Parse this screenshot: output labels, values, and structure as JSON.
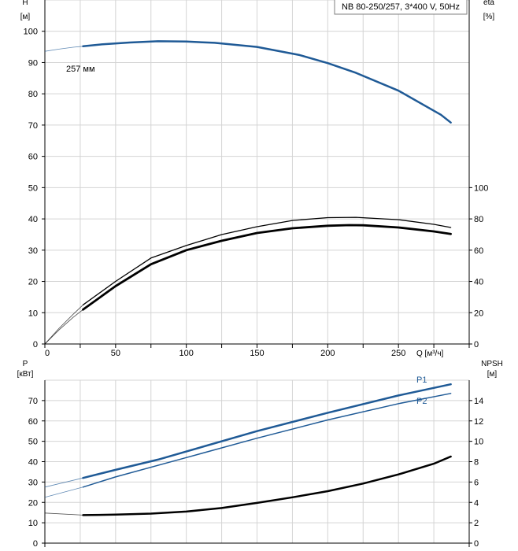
{
  "title": "NB 80-250/257, 3*400 V, 50Hz",
  "chart_data": [
    {
      "type": "line",
      "panel": "upper",
      "xlabel": "Q [м³/ч]",
      "xlim": [
        0,
        300
      ],
      "x_ticks": [
        0,
        50,
        100,
        150,
        200,
        250
      ],
      "ylabel_left": "H\n[м]",
      "ylim_left": [
        0,
        110
      ],
      "y_ticks_left": [
        0,
        10,
        20,
        30,
        40,
        50,
        60,
        70,
        80,
        90,
        100
      ],
      "ylabel_right": "eta\n[%]",
      "ylim_right": [
        0,
        220
      ],
      "y_ticks_right": [
        0,
        20,
        40,
        60,
        80,
        100
      ],
      "grid": true,
      "annotations": [
        {
          "text": "257 мм"
        }
      ],
      "series": [
        {
          "id": "H",
          "axis": "left",
          "color": "#1f5a96",
          "x": [
            27,
            40,
            60,
            80,
            100,
            120,
            150,
            180,
            200,
            220,
            250,
            280,
            287
          ],
          "y": [
            95.2,
            95.8,
            96.4,
            96.8,
            96.7,
            96.3,
            95.0,
            92.4,
            89.8,
            86.7,
            81.0,
            73.3,
            70.8
          ],
          "ext_x": [
            0,
            10,
            20,
            27
          ],
          "ext_y": [
            93.6,
            94.3,
            94.9,
            95.2
          ]
        },
        {
          "id": "eta",
          "axis": "right",
          "color": "#000000",
          "x": [
            27,
            50,
            75,
            100,
            125,
            150,
            175,
            200,
            215,
            225,
            250,
            275,
            287
          ],
          "y": [
            22,
            37,
            51,
            60,
            66,
            71,
            74,
            75.6,
            76,
            75.9,
            74.5,
            72,
            70.4
          ],
          "ext_x": [
            0,
            10,
            20,
            27
          ],
          "ext_y": [
            0,
            9,
            17,
            22
          ]
        },
        {
          "id": "eta_outer",
          "axis": "right",
          "color": "#000000",
          "x": [
            27,
            50,
            75,
            100,
            125,
            150,
            175,
            200,
            220,
            250,
            275,
            287
          ],
          "y": [
            25,
            40,
            55,
            63,
            70,
            75,
            79,
            80.8,
            81,
            79.5,
            76.5,
            74.5
          ],
          "ext_x": [
            0,
            10,
            20,
            27
          ],
          "ext_y": [
            0,
            10,
            19,
            25
          ]
        }
      ]
    },
    {
      "type": "line",
      "panel": "lower",
      "xlim": [
        0,
        300
      ],
      "ylabel_left": "P\n[кВт]",
      "ylim_left": [
        0,
        80
      ],
      "y_ticks_left": [
        0,
        10,
        20,
        30,
        40,
        50,
        60,
        70
      ],
      "ylabel_right": "NPSH\n[м]",
      "ylim_right": [
        0,
        16
      ],
      "y_ticks_right": [
        0,
        2,
        4,
        6,
        8,
        10,
        12,
        14
      ],
      "grid": true,
      "series": [
        {
          "id": "P1",
          "name": "P1",
          "axis": "left",
          "color": "#1f5a96",
          "x": [
            27,
            50,
            80,
            100,
            150,
            200,
            250,
            287
          ],
          "y": [
            32,
            36,
            41,
            45,
            55,
            64,
            72.5,
            78
          ],
          "ext_x": [
            0,
            27
          ],
          "ext_y": [
            27.5,
            32
          ]
        },
        {
          "id": "P2",
          "name": "P2",
          "axis": "left",
          "color": "#1f5a96",
          "x": [
            27,
            50,
            100,
            150,
            200,
            250,
            287
          ],
          "y": [
            27.5,
            32.5,
            42,
            51.5,
            60.5,
            68.5,
            73.5
          ],
          "ext_x": [
            0,
            27
          ],
          "ext_y": [
            22.5,
            27.5
          ]
        },
        {
          "id": "NPSH",
          "axis": "right",
          "color": "#000000",
          "x": [
            27,
            50,
            75,
            100,
            125,
            150,
            175,
            200,
            225,
            250,
            275,
            287
          ],
          "y": [
            2.75,
            2.8,
            2.9,
            3.1,
            3.45,
            3.95,
            4.5,
            5.1,
            5.85,
            6.75,
            7.8,
            8.5
          ],
          "ext_x": [
            0,
            27
          ],
          "ext_y": [
            2.95,
            2.75
          ]
        }
      ]
    }
  ]
}
